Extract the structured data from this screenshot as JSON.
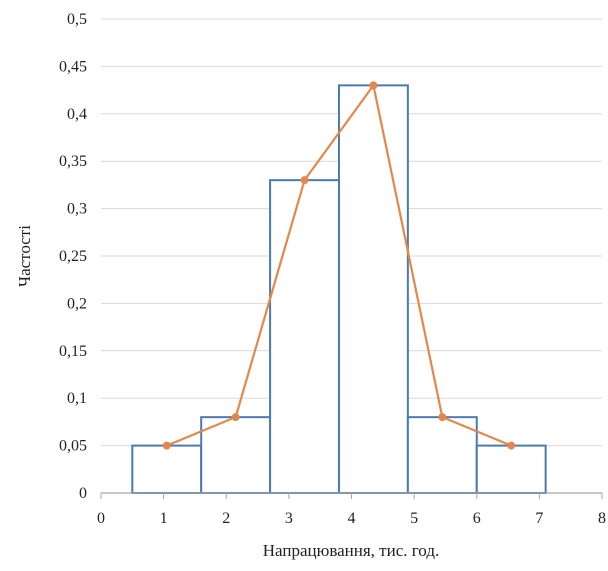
{
  "chart_data": {
    "type": "bar",
    "title": "",
    "xlabel": "Напрацювання, тис. год.",
    "ylabel": "Частості",
    "xlim": [
      0,
      8
    ],
    "ylim": [
      0,
      0.5
    ],
    "x_ticks": [
      "0",
      "1",
      "2",
      "3",
      "4",
      "5",
      "6",
      "7",
      "8"
    ],
    "y_ticks": [
      "0",
      "0,05",
      "0,1",
      "0,15",
      "0,2",
      "0,25",
      "0,3",
      "0,35",
      "0,4",
      "0,45",
      "0,5"
    ],
    "grid": "horizontal",
    "legend": "none",
    "histogram": {
      "bins": [
        {
          "from": 0.5,
          "to": 1.6,
          "value": 0.05
        },
        {
          "from": 1.6,
          "to": 2.7,
          "value": 0.08
        },
        {
          "from": 2.7,
          "to": 3.8,
          "value": 0.33
        },
        {
          "from": 3.8,
          "to": 4.9,
          "value": 0.43
        },
        {
          "from": 4.9,
          "to": 6.0,
          "value": 0.08
        },
        {
          "from": 6.0,
          "to": 7.1,
          "value": 0.05
        }
      ]
    },
    "polygon": {
      "x": [
        1.05,
        2.15,
        3.25,
        4.35,
        5.45,
        6.55
      ],
      "y": [
        0.05,
        0.08,
        0.33,
        0.43,
        0.08,
        0.05
      ]
    },
    "colors": {
      "bar_stroke": "#4a7ab3",
      "line": "#e3884a",
      "grid": "#d9d9d9",
      "axis": "#a6a6a6"
    }
  }
}
